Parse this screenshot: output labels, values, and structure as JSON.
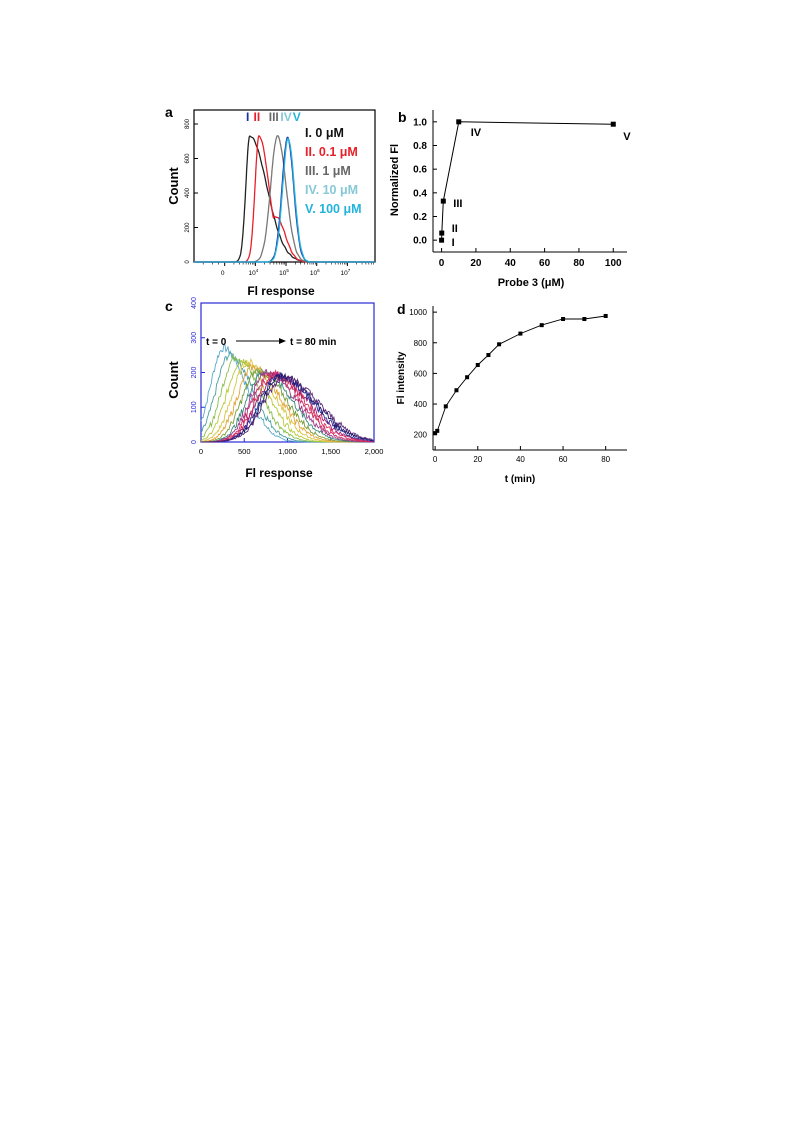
{
  "panels": {
    "a": {
      "letter": "a",
      "type": "histogram-overlay",
      "ylabel": "Count",
      "xlabel": "Fl response",
      "x_log": true,
      "xlim_log10": [
        2.0,
        7.9
      ],
      "ylim": [
        0,
        800
      ],
      "yticks": [
        "0",
        "200",
        "400",
        "600",
        "800"
      ],
      "xticks": [
        {
          "label": "0",
          "pos": 3.0,
          "sup": ""
        },
        {
          "label": "10",
          "pos": 4.0,
          "sup": "4"
        },
        {
          "label": "10",
          "pos": 5.0,
          "sup": "5"
        },
        {
          "label": "10",
          "pos": 6.0,
          "sup": "6"
        },
        {
          "label": "10",
          "pos": 7.0,
          "sup": "7"
        }
      ],
      "top_labels": [
        {
          "text": "I",
          "color": "#1b2fa8",
          "pos": 3.75
        },
        {
          "text": "II",
          "color": "#e8202a",
          "pos": 4.05
        },
        {
          "text": "III",
          "color": "#666666",
          "pos": 4.6
        },
        {
          "text": "IV",
          "color": "#86c8d6",
          "pos": 5.0
        },
        {
          "text": "V",
          "color": "#22b3dd",
          "pos": 5.35
        }
      ],
      "series": [
        {
          "name": "I. 0  μM",
          "color": "#222222",
          "peak_log": 3.82,
          "peak": 730,
          "left_w": 0.13,
          "right_w": 0.55,
          "shoulder": true
        },
        {
          "name": "II. 0.1  μM",
          "color": "#e8202a",
          "peak_log": 4.12,
          "peak": 730,
          "left_w": 0.13,
          "right_w": 0.32,
          "shoulder": true
        },
        {
          "name": "III. 1  μM",
          "color": "#777777",
          "peak_log": 4.72,
          "peak": 730,
          "left_w": 0.22,
          "right_w": 0.28,
          "shoulder": false
        },
        {
          "name": "IV. 10  μM",
          "color": "#1b2fa8",
          "peak_log": 5.05,
          "peak": 720,
          "left_w": 0.18,
          "right_w": 0.2,
          "shoulder": false
        },
        {
          "name": "V. 100  μM",
          "color": "#22b3dd",
          "peak_log": 5.07,
          "peak": 715,
          "left_w": 0.18,
          "right_w": 0.2,
          "shoulder": false
        }
      ],
      "legend": [
        {
          "text": "I. 0  μM",
          "color": "#111111"
        },
        {
          "text": "II. 0.1  μM",
          "color": "#e8202a"
        },
        {
          "text": "III. 1  μM",
          "color": "#666666"
        },
        {
          "text": "IV. 10  μM",
          "color": "#86c8d6"
        },
        {
          "text": "V. 100  μM",
          "color": "#22b3dd"
        }
      ]
    },
    "b": {
      "letter": "b",
      "type": "line",
      "xlabel": "Probe 3 (μM)",
      "ylabel": "Normalized Fl",
      "xlim": [
        -5,
        108
      ],
      "ylim": [
        -0.1,
        1.1
      ],
      "xticks": [
        "0",
        "20",
        "40",
        "60",
        "80",
        "100"
      ],
      "yticks": [
        "0.0",
        "0.2",
        "0.4",
        "0.6",
        "0.8",
        "1.0"
      ],
      "points": [
        {
          "x": 0,
          "y": 0.0,
          "label": "I"
        },
        {
          "x": 0.1,
          "y": 0.06,
          "label": "II"
        },
        {
          "x": 1,
          "y": 0.33,
          "label": "III"
        },
        {
          "x": 10,
          "y": 1.0,
          "label": "IV"
        },
        {
          "x": 100,
          "y": 0.98,
          "label": "V"
        }
      ]
    },
    "c": {
      "letter": "c",
      "type": "histogram-overlay",
      "ylabel": "Count",
      "xlabel": "Fl response",
      "xlim": [
        0,
        2000
      ],
      "ylim": [
        0,
        400
      ],
      "xticks": [
        "0",
        "500",
        "1,000",
        "1,500",
        "2,000"
      ],
      "yticks": [
        "0",
        "100",
        "200",
        "300",
        "400"
      ],
      "annotation_start": "t = 0",
      "annotation_end": "t = 80 min",
      "colors": [
        "#5aa9c9",
        "#4c9f9f",
        "#8bbf4a",
        "#b6c93b",
        "#d8c545",
        "#e4a234",
        "#7a9e3a",
        "#3d8a7a",
        "#9a3c8c",
        "#c9306a",
        "#e0305a",
        "#a81e6e",
        "#2c2c9a",
        "#1a1a6a",
        "#5a2a7a"
      ],
      "peaks": [
        260,
        330,
        400,
        470,
        540,
        600,
        660,
        720,
        760,
        800,
        840,
        870,
        900,
        930,
        960
      ],
      "heights": [
        270,
        250,
        245,
        235,
        230,
        215,
        205,
        200,
        198,
        195,
        195,
        192,
        190,
        188,
        185
      ]
    },
    "d": {
      "letter": "d",
      "type": "line",
      "xlabel": "t (min)",
      "ylabel": "Fl intensity",
      "xlim": [
        -1,
        90
      ],
      "ylim": [
        100,
        1040
      ],
      "xticks": [
        "0",
        "20",
        "40",
        "60",
        "80"
      ],
      "yticks": [
        "200",
        "400",
        "600",
        "800",
        "1000"
      ],
      "x": [
        0,
        1,
        5,
        10,
        15,
        20,
        25,
        30,
        40,
        50,
        60,
        70,
        80
      ],
      "y": [
        210,
        225,
        385,
        490,
        575,
        655,
        720,
        790,
        860,
        915,
        955,
        955,
        975
      ]
    }
  }
}
